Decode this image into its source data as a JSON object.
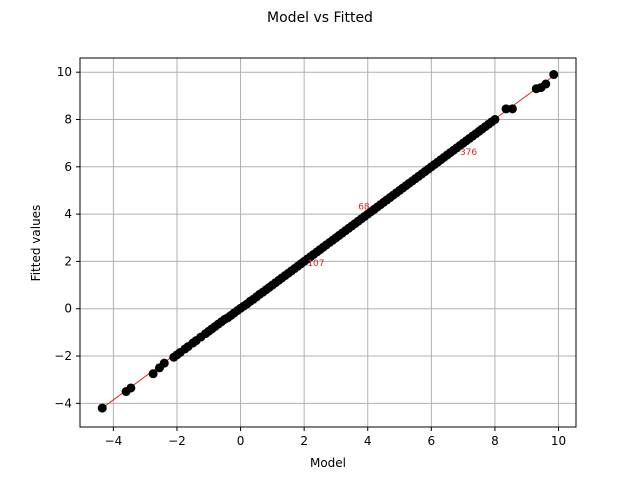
{
  "chart_data": {
    "type": "scatter",
    "title": "Model vs Fitted",
    "xlabel": "Model",
    "ylabel": "Fitted values",
    "xlim": [
      -5.05,
      10.55
    ],
    "ylim": [
      -5.0,
      10.6
    ],
    "xticks": [
      -4,
      -2,
      0,
      2,
      4,
      6,
      8,
      10
    ],
    "yticks": [
      -4,
      -2,
      0,
      2,
      4,
      6,
      8,
      10
    ],
    "grid": true,
    "colors": {
      "points": "#000000",
      "fit_line": "#e8211c",
      "annotations": "#e8211c",
      "grid": "#b0b0b0"
    },
    "fit_line": {
      "x": [
        -4.35,
        9.85
      ],
      "y": [
        -4.2,
        9.85
      ]
    },
    "series": [
      {
        "x": [
          -4.35,
          -3.6,
          -3.45,
          -2.75,
          -2.55,
          -2.4,
          -2.1,
          -2.0,
          -1.9,
          -1.75,
          -1.65,
          -1.5,
          -1.4,
          -1.25,
          -1.1,
          -1.0,
          -0.9,
          -0.8,
          -0.7,
          -0.6,
          -0.5,
          -0.4,
          -0.3,
          -0.2,
          -0.1,
          0.0,
          0.1,
          0.2,
          0.3,
          0.4,
          0.5,
          0.6,
          0.7,
          0.8,
          0.9,
          1.0,
          1.1,
          1.2,
          1.3,
          1.4,
          1.5,
          1.6,
          1.7,
          1.8,
          1.9,
          2.0,
          2.1,
          2.2,
          2.3,
          2.4,
          2.5,
          2.6,
          2.7,
          2.8,
          2.9,
          3.0,
          3.1,
          3.2,
          3.3,
          3.4,
          3.5,
          3.6,
          3.7,
          3.8,
          3.9,
          4.0,
          4.1,
          4.2,
          4.3,
          4.4,
          4.5,
          4.6,
          4.7,
          4.8,
          4.9,
          5.0,
          5.1,
          5.2,
          5.3,
          5.4,
          5.5,
          5.6,
          5.7,
          5.8,
          5.9,
          6.0,
          6.1,
          6.2,
          6.3,
          6.4,
          6.5,
          6.6,
          6.7,
          6.8,
          6.9,
          7.0,
          7.1,
          7.2,
          7.3,
          7.4,
          7.5,
          7.6,
          7.7,
          7.8,
          7.9,
          8.0,
          8.35,
          8.55,
          9.3,
          9.45,
          9.6,
          9.85
        ],
        "y": [
          -4.2,
          -3.5,
          -3.35,
          -2.75,
          -2.5,
          -2.3,
          -2.05,
          -1.95,
          -1.85,
          -1.7,
          -1.6,
          -1.45,
          -1.35,
          -1.2,
          -1.05,
          -0.95,
          -0.85,
          -0.75,
          -0.65,
          -0.55,
          -0.45,
          -0.38,
          -0.28,
          -0.18,
          -0.08,
          0.02,
          0.11,
          0.2,
          0.31,
          0.4,
          0.5,
          0.61,
          0.7,
          0.8,
          0.9,
          1.0,
          1.1,
          1.2,
          1.3,
          1.4,
          1.5,
          1.6,
          1.7,
          1.8,
          1.9,
          2.0,
          2.1,
          2.2,
          2.3,
          2.4,
          2.5,
          2.6,
          2.7,
          2.8,
          2.9,
          3.0,
          3.1,
          3.2,
          3.3,
          3.4,
          3.5,
          3.6,
          3.7,
          3.8,
          3.9,
          4.0,
          4.1,
          4.2,
          4.3,
          4.4,
          4.5,
          4.6,
          4.7,
          4.8,
          4.9,
          5.0,
          5.1,
          5.2,
          5.3,
          5.4,
          5.5,
          5.6,
          5.7,
          5.8,
          5.9,
          6.0,
          6.1,
          6.2,
          6.3,
          6.4,
          6.5,
          6.6,
          6.7,
          6.8,
          6.9,
          7.0,
          7.1,
          7.2,
          7.3,
          7.4,
          7.5,
          7.6,
          7.7,
          7.8,
          7.9,
          8.0,
          8.45,
          8.45,
          9.3,
          9.35,
          9.5,
          9.9
        ]
      }
    ],
    "annotations": [
      {
        "text": "68",
        "x": 3.7,
        "y": 4.2
      },
      {
        "text": "107",
        "x": 2.1,
        "y": 1.8
      },
      {
        "text": "376",
        "x": 6.9,
        "y": 6.5
      }
    ]
  }
}
